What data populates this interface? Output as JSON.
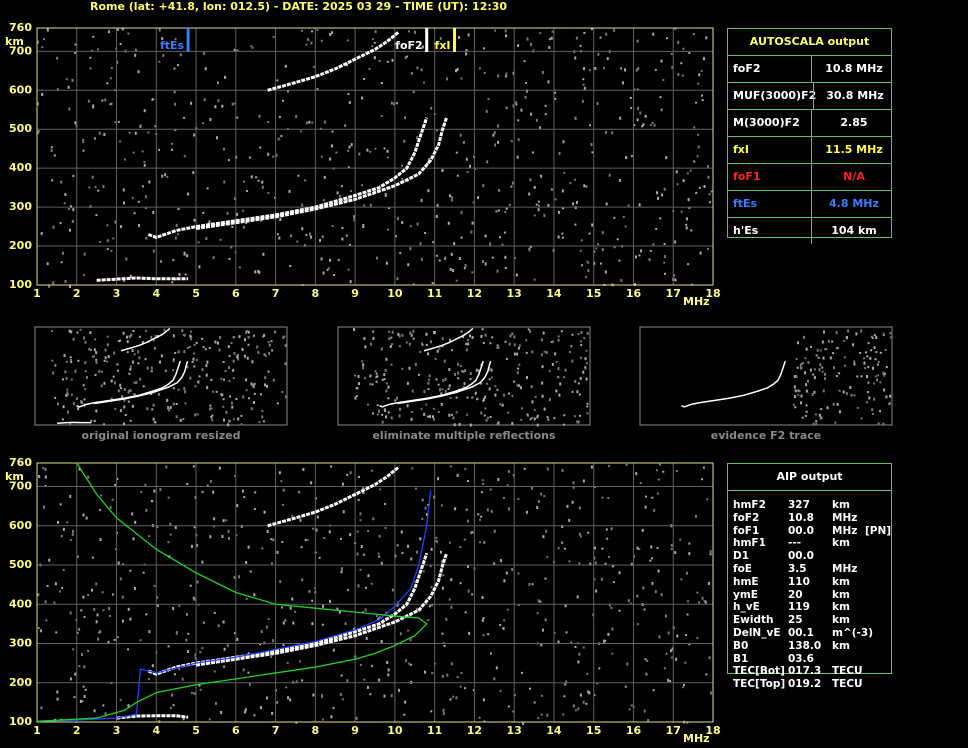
{
  "header": {
    "title": "Rome (lat: +41.8, lon: 012.5) - DATE: 2025 03 29 - TIME (UT): 12:30"
  },
  "chart_data": [
    {
      "type": "line",
      "x_label": "MHz",
      "y_label": "km",
      "xlim": [
        1,
        18
      ],
      "ylim": [
        100,
        760
      ],
      "xticks": [
        1,
        2,
        3,
        4,
        5,
        6,
        7,
        8,
        9,
        10,
        11,
        12,
        13,
        14,
        15,
        16,
        17,
        18
      ],
      "yticks": [
        100,
        200,
        300,
        400,
        500,
        600,
        700,
        760
      ],
      "grid": true,
      "series": [
        {
          "color": "#ffffff",
          "x": [
            3.8,
            4.0,
            4.5,
            5.0,
            6.0,
            7.0,
            8.0,
            9.0,
            9.6,
            10.0,
            10.3,
            10.5,
            10.7,
            10.8
          ],
          "values": [
            230,
            222,
            240,
            250,
            265,
            280,
            300,
            330,
            350,
            375,
            400,
            440,
            500,
            530
          ]
        },
        {
          "color": "#ffffff",
          "x": [
            5.0,
            6.0,
            7.0,
            8.0,
            9.0,
            10.0,
            10.6,
            10.9,
            11.1,
            11.2,
            11.3
          ],
          "values": [
            245,
            260,
            275,
            295,
            320,
            355,
            385,
            420,
            460,
            500,
            530
          ]
        },
        {
          "color": "#ffffff",
          "x": [
            6.8,
            7.5,
            8.0,
            8.5,
            9.0,
            9.5,
            9.8,
            10.1
          ],
          "values": [
            600,
            620,
            635,
            655,
            680,
            705,
            725,
            750
          ]
        },
        {
          "color": "#ffffff",
          "x": [
            2.5,
            3.0,
            3.5,
            4.0,
            4.5,
            4.8
          ],
          "values": [
            112,
            115,
            118,
            116,
            116,
            116
          ]
        }
      ],
      "markers": [
        {
          "label": "ftEs",
          "value": 4.8,
          "color": "#3a7cff"
        },
        {
          "label": "foF2",
          "value": 10.8,
          "color": "#ffffff"
        },
        {
          "label": "fxI",
          "value": 11.5,
          "color": "#ffff40"
        }
      ]
    },
    {
      "type": "line",
      "x_label": "MHz",
      "y_label": "km",
      "xlim": [
        1,
        18
      ],
      "ylim": [
        100,
        760
      ],
      "xticks": [
        1,
        2,
        3,
        4,
        5,
        6,
        7,
        8,
        9,
        10,
        11,
        12,
        13,
        14,
        15,
        16,
        17,
        18
      ],
      "yticks": [
        100,
        200,
        300,
        400,
        500,
        600,
        700,
        760
      ],
      "grid": true,
      "series": [
        {
          "color": "#ffffff",
          "x": [
            3.8,
            4.0,
            4.5,
            5.0,
            6.0,
            7.0,
            8.0,
            9.0,
            9.6,
            10.0,
            10.3,
            10.5,
            10.7,
            10.8
          ],
          "values": [
            230,
            222,
            240,
            250,
            265,
            280,
            300,
            330,
            350,
            375,
            400,
            440,
            500,
            530
          ]
        },
        {
          "color": "#ffffff",
          "x": [
            5.0,
            6.0,
            7.0,
            8.0,
            9.0,
            10.0,
            10.6,
            10.9,
            11.1,
            11.2,
            11.3
          ],
          "values": [
            245,
            260,
            275,
            295,
            320,
            355,
            385,
            420,
            460,
            500,
            530
          ]
        },
        {
          "color": "#ffffff",
          "x": [
            6.8,
            7.5,
            8.0,
            8.5,
            9.0,
            9.5,
            9.8,
            10.1
          ],
          "values": [
            600,
            620,
            635,
            655,
            680,
            705,
            725,
            750
          ]
        },
        {
          "color": "#ffffff",
          "x": [
            3.0,
            3.5,
            4.0,
            4.5,
            4.8
          ],
          "values": [
            110,
            115,
            116,
            116,
            112
          ]
        },
        {
          "color": "#2040ff",
          "x": [
            1.0,
            2.0,
            3.0,
            3.5,
            3.6,
            4.0,
            5.0,
            6.0,
            7.0,
            8.0,
            9.0,
            9.6,
            10.0,
            10.4,
            10.6,
            10.8,
            10.9
          ],
          "values": [
            102,
            105,
            110,
            120,
            235,
            225,
            250,
            265,
            285,
            305,
            335,
            360,
            395,
            440,
            500,
            600,
            690
          ]
        },
        {
          "color": "#20d020",
          "x": [
            1.0,
            2.5,
            3.2,
            3.5,
            4.0,
            5.0,
            6.0,
            7.0,
            8.0,
            9.0,
            9.5,
            10.0,
            10.5,
            10.8,
            10.6,
            10.0,
            9.0,
            8.0,
            7.0,
            6.0,
            5.0,
            4.0,
            3.0,
            2.5,
            2.0
          ],
          "values": [
            102,
            110,
            130,
            150,
            175,
            195,
            210,
            225,
            240,
            260,
            275,
            295,
            320,
            350,
            365,
            370,
            380,
            390,
            400,
            430,
            480,
            540,
            620,
            680,
            760
          ]
        }
      ]
    }
  ],
  "thumbnails": [
    {
      "caption": "original ionogram resized"
    },
    {
      "caption": "eliminate multiple reflections"
    },
    {
      "caption": "evidence F2 trace"
    }
  ],
  "autoscala": {
    "title": "AUTOSCALA output",
    "rows": [
      [
        "foF2",
        "10.8 MHz"
      ],
      [
        "MUF(3000)F2",
        "30.8 MHz"
      ],
      [
        "M(3000)F2",
        "2.85"
      ],
      [
        "fxI",
        "11.5 MHz"
      ],
      [
        "foF1",
        "N/A"
      ],
      [
        "ftEs",
        "4.8 MHz"
      ],
      [
        "h'Es",
        "104 km"
      ]
    ]
  },
  "aip": {
    "title": "AIP output",
    "rows": [
      [
        "hmF2",
        "327",
        "km"
      ],
      [
        "foF2",
        "10.8",
        "MHz"
      ],
      [
        "foF1",
        "00.0",
        "MHz",
        "[PN]"
      ],
      [
        "hmF1",
        "---",
        "km"
      ],
      [
        "D1",
        "00.0"
      ],
      [
        "foE",
        "3.5",
        "MHz"
      ],
      [
        "hmE",
        "110",
        "km"
      ],
      [
        "ymE",
        "20",
        "km"
      ],
      [
        "h_vE",
        "119",
        "km"
      ],
      [
        "Ewidth",
        "25",
        "km"
      ],
      [
        "DelN_vE",
        "00.1",
        "m^(-3)"
      ],
      [
        "B0",
        "138.0",
        "km"
      ],
      [
        "B1",
        "03.6"
      ],
      [
        "TEC[Bot]",
        "017.3",
        "TECU"
      ],
      [
        "TEC[Top]",
        "019.2",
        "TECU"
      ]
    ]
  }
}
